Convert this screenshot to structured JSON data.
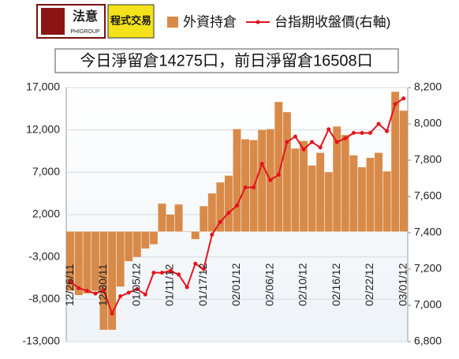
{
  "logo": {
    "name": "法意",
    "group": "PHIGROUP",
    "tagline": "程式交易"
  },
  "chart_data": {
    "type": "bar_line",
    "title": "今日淨留倉14275口，前日淨留倉16508口",
    "categories": [
      "12/26/11",
      null,
      null,
      null,
      "12/30/11",
      null,
      null,
      null,
      "01/05/12",
      null,
      null,
      null,
      "01/11/12",
      null,
      null,
      null,
      "01/17/12",
      null,
      null,
      null,
      "02/01/12",
      null,
      null,
      null,
      "02/06/12",
      null,
      null,
      null,
      "02/10/12",
      null,
      null,
      null,
      "02/16/12",
      null,
      null,
      null,
      "02/22/12",
      null,
      null,
      null,
      "03/01/12"
    ],
    "series": [
      {
        "name": "外資持倉",
        "color": "#d98a48",
        "type": "bar",
        "values": [
          -7000,
          -7500,
          -7300,
          -7000,
          -11600,
          -11600,
          -6500,
          -3500,
          -3000,
          -2000,
          -1500,
          3300,
          2000,
          3200,
          0,
          -900,
          3000,
          4500,
          5800,
          6600,
          12100,
          10900,
          10800,
          12000,
          12100,
          15300,
          14100,
          9800,
          10700,
          7800,
          9300,
          7000,
          12400,
          11400,
          9000,
          7600,
          8700,
          9300,
          7100,
          16508,
          14275
        ]
      },
      {
        "name": "台指期收盤價(右軸)",
        "color": "#e3141b",
        "type": "line",
        "axis": "y2",
        "values": [
          7130,
          7095,
          7080,
          7065,
          7085,
          6955,
          7050,
          7070,
          7090,
          7060,
          7180,
          7180,
          7190,
          7170,
          7100,
          7230,
          7200,
          7390,
          7460,
          7510,
          7550,
          7650,
          7650,
          7780,
          7690,
          7720,
          7900,
          7930,
          7860,
          7900,
          7870,
          7970,
          7900,
          7920,
          7950,
          7950,
          7950,
          8000,
          7960,
          8110,
          8140
        ]
      }
    ],
    "ylim": [
      -13000,
      17000
    ],
    "yticks": [
      {
        "value": -13000,
        "label": "-13,000"
      },
      {
        "value": -8000,
        "label": "-8,000"
      },
      {
        "value": -3000,
        "label": "-3,000"
      },
      {
        "value": 2000,
        "label": "2,000"
      },
      {
        "value": 7000,
        "label": "7,000"
      },
      {
        "value": 12000,
        "label": "12,000"
      },
      {
        "value": 17000,
        "label": "17,000"
      }
    ],
    "y2lim": [
      6800,
      8200
    ],
    "y2ticks": [
      {
        "value": 6800,
        "label": "6,800"
      },
      {
        "value": 7000,
        "label": "7,000"
      },
      {
        "value": 7200,
        "label": "7,200"
      },
      {
        "value": 7400,
        "label": "7,400"
      },
      {
        "value": 7600,
        "label": "7,600"
      },
      {
        "value": 7800,
        "label": "7,800"
      },
      {
        "value": 8000,
        "label": "8,000"
      },
      {
        "value": 8200,
        "label": "8,200"
      }
    ],
    "grid": true,
    "legend": "top"
  }
}
